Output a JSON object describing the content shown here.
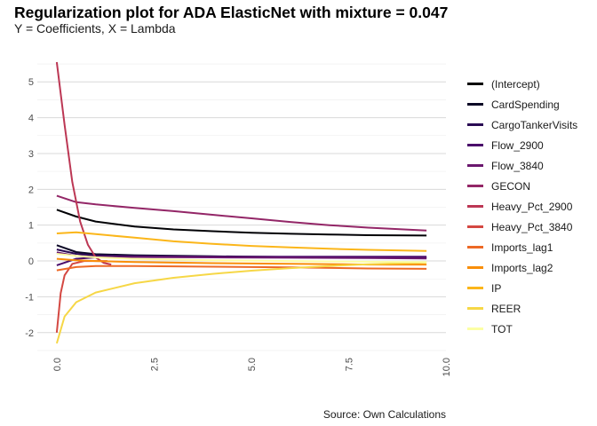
{
  "chart_data": {
    "type": "line",
    "title": "Regularization plot for ADA ElasticNet with mixture = 0.047",
    "subtitle": "Y = Coefficients, X = Lambda",
    "caption": "Source: Own Calculations",
    "xlabel": "",
    "ylabel": "",
    "xlim": [
      -0.5,
      10.0
    ],
    "ylim": [
      -2.55,
      5.55
    ],
    "x_ticks": [
      0.0,
      2.5,
      5.0,
      7.5,
      10.0
    ],
    "x_tick_labels": [
      "0.0",
      "2.5",
      "5.0",
      "7.5",
      "10.0"
    ],
    "y_ticks": [
      -2,
      -1,
      0,
      1,
      2,
      3,
      4,
      5
    ],
    "y_tick_labels": [
      "-2",
      "-1",
      "0",
      "1",
      "2",
      "3",
      "4",
      "5"
    ],
    "grid": true,
    "legend_position": "right",
    "series": [
      {
        "name": "(Intercept)",
        "color": "#000004",
        "x": [
          0.0,
          0.5,
          1.0,
          2.0,
          3.0,
          4.0,
          5.0,
          6.0,
          7.0,
          8.0,
          9.5
        ],
        "values": [
          1.43,
          1.24,
          1.1,
          0.96,
          0.88,
          0.83,
          0.79,
          0.76,
          0.74,
          0.72,
          0.71
        ]
      },
      {
        "name": "CardSpending",
        "color": "#0c0826",
        "x": [
          0.0,
          0.5,
          1.0,
          2.0,
          4.0,
          6.0,
          8.0,
          9.5
        ],
        "values": [
          0.44,
          0.25,
          0.19,
          0.16,
          0.13,
          0.11,
          0.1,
          0.1
        ]
      },
      {
        "name": "CargoTankerVisits",
        "color": "#2a0b54",
        "x": [
          0.0,
          0.5,
          1.0,
          2.0,
          4.0,
          6.0,
          8.0,
          9.5
        ],
        "values": [
          0.32,
          0.2,
          0.16,
          0.14,
          0.12,
          0.1,
          0.09,
          0.08
        ]
      },
      {
        "name": "Flow_2900",
        "color": "#4a0c6b",
        "x": [
          0.0,
          0.5,
          1.0,
          2.0,
          4.0,
          6.0,
          8.0,
          9.5
        ],
        "values": [
          -0.12,
          0.06,
          0.1,
          0.12,
          0.12,
          0.12,
          0.12,
          0.12
        ]
      },
      {
        "name": "Flow_3840",
        "color": "#6a176e",
        "x": [
          0.0,
          0.5,
          1.0,
          2.0,
          4.0,
          6.0,
          8.0,
          9.5
        ],
        "values": [
          0.24,
          0.14,
          0.12,
          0.11,
          0.1,
          0.09,
          0.08,
          0.07
        ]
      },
      {
        "name": "GECON",
        "color": "#932667",
        "x": [
          0.0,
          0.5,
          1.0,
          2.0,
          3.0,
          4.0,
          5.0,
          6.0,
          7.0,
          8.0,
          9.5
        ],
        "values": [
          1.82,
          1.64,
          1.58,
          1.48,
          1.39,
          1.29,
          1.19,
          1.09,
          1.0,
          0.93,
          0.85
        ]
      },
      {
        "name": "Heavy_Pct_2900",
        "color": "#bc3754",
        "x": [
          0.0,
          0.2,
          0.4,
          0.6,
          0.8,
          1.0,
          1.2,
          1.4
        ],
        "values": [
          5.55,
          3.8,
          2.2,
          1.1,
          0.45,
          0.1,
          -0.05,
          -0.1
        ]
      },
      {
        "name": "Heavy_Pct_3840",
        "color": "#d44842",
        "x": [
          0.0,
          0.1,
          0.2,
          0.4,
          0.7,
          1.0,
          1.3
        ],
        "values": [
          -2.0,
          -0.9,
          -0.4,
          -0.08,
          0.0,
          0.0,
          0.0
        ]
      },
      {
        "name": "Imports_lag1",
        "color": "#ed6925",
        "x": [
          0.0,
          0.5,
          1.0,
          2.0,
          4.0,
          6.0,
          8.0,
          9.5
        ],
        "values": [
          -0.26,
          -0.17,
          -0.14,
          -0.14,
          -0.16,
          -0.18,
          -0.21,
          -0.22
        ]
      },
      {
        "name": "Imports_lag2",
        "color": "#f98e09",
        "x": [
          0.0,
          0.5,
          1.0,
          2.0,
          4.0,
          6.0,
          8.0,
          9.5
        ],
        "values": [
          0.06,
          0.02,
          0.0,
          -0.03,
          -0.06,
          -0.08,
          -0.1,
          -0.1
        ]
      },
      {
        "name": "IP",
        "color": "#fbb61a",
        "x": [
          0.0,
          0.5,
          1.0,
          2.0,
          3.0,
          4.0,
          5.0,
          6.0,
          7.0,
          8.0,
          9.5
        ],
        "values": [
          0.77,
          0.8,
          0.75,
          0.65,
          0.55,
          0.48,
          0.42,
          0.38,
          0.34,
          0.31,
          0.28
        ]
      },
      {
        "name": "REER",
        "color": "#f6d746",
        "x": [
          0.0,
          0.2,
          0.5,
          1.0,
          2.0,
          3.0,
          4.0,
          5.0,
          6.0,
          7.0,
          8.0,
          9.5
        ],
        "values": [
          -2.3,
          -1.55,
          -1.15,
          -0.88,
          -0.62,
          -0.47,
          -0.36,
          -0.27,
          -0.2,
          -0.14,
          -0.09,
          -0.04
        ]
      },
      {
        "name": "TOT",
        "color": "#fcffa4",
        "x": [
          0.0,
          0.5,
          1.0,
          2.0,
          4.0,
          6.0,
          8.0,
          9.5
        ],
        "values": [
          0.2,
          0.14,
          0.1,
          0.06,
          0.02,
          0.0,
          -0.02,
          -0.03
        ]
      }
    ]
  }
}
